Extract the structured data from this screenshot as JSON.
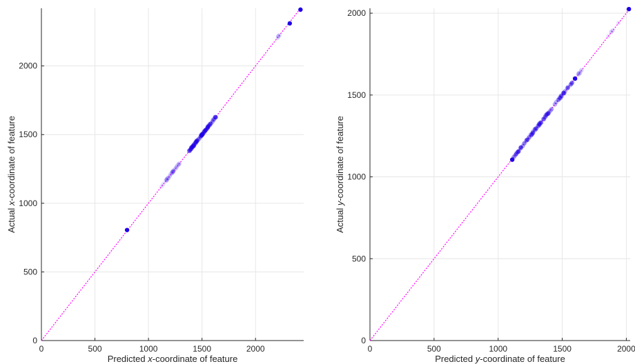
{
  "chart_data": [
    {
      "type": "scatter",
      "xlabel_parts": [
        "Predicted ",
        "x",
        "-coordinate of feature"
      ],
      "ylabel_parts": [
        "Actual ",
        "x",
        "-coordinate of feature"
      ],
      "xlim": [
        0,
        2450
      ],
      "ylim": [
        0,
        2420
      ],
      "xticks": [
        0,
        500,
        1000,
        1500,
        2000
      ],
      "yticks": [
        0,
        500,
        1000,
        1500,
        2000
      ],
      "grid": true,
      "reference_line": "y = x",
      "colors": {
        "points": "#1f00e6",
        "reference_line": "#ff00ff"
      },
      "clusters": [
        {
          "x_range": [
            1380,
            1640
          ],
          "count": 70,
          "opacity": 0.35
        },
        {
          "x_range": [
            1160,
            1300
          ],
          "count": 18,
          "opacity": 0.18
        },
        {
          "x_range": [
            2195,
            2225
          ],
          "count": 4,
          "opacity": 0.12
        },
        {
          "x_range": [
            1080,
            1160
          ],
          "count": 3,
          "opacity": 0.08
        }
      ],
      "points": [
        {
          "x": 800,
          "y": 805
        },
        {
          "x": 2320,
          "y": 2310
        },
        {
          "x": 2420,
          "y": 2410
        }
      ]
    },
    {
      "type": "scatter",
      "xlabel_parts": [
        "Predicted ",
        "y",
        "-coordinate of feature"
      ],
      "ylabel_parts": [
        "Actual ",
        "y",
        "-coordinate of feature"
      ],
      "xlim": [
        0,
        2030
      ],
      "ylim": [
        0,
        2030
      ],
      "xticks": [
        0,
        500,
        1000,
        1500,
        2000
      ],
      "yticks": [
        0,
        500,
        1000,
        1500,
        2000
      ],
      "grid": true,
      "reference_line": "y = x",
      "colors": {
        "points": "#1f00e6",
        "reference_line": "#ff00ff"
      },
      "clusters": [
        {
          "x_range": [
            1120,
            1560
          ],
          "count": 80,
          "opacity": 0.3
        },
        {
          "x_range": [
            1560,
            1690
          ],
          "count": 12,
          "opacity": 0.2
        },
        {
          "x_range": [
            1850,
            1950
          ],
          "count": 5,
          "opacity": 0.1
        }
      ],
      "points": [
        {
          "x": 1110,
          "y": 1105
        },
        {
          "x": 1600,
          "y": 1600
        },
        {
          "x": 2020,
          "y": 2025
        }
      ]
    }
  ]
}
